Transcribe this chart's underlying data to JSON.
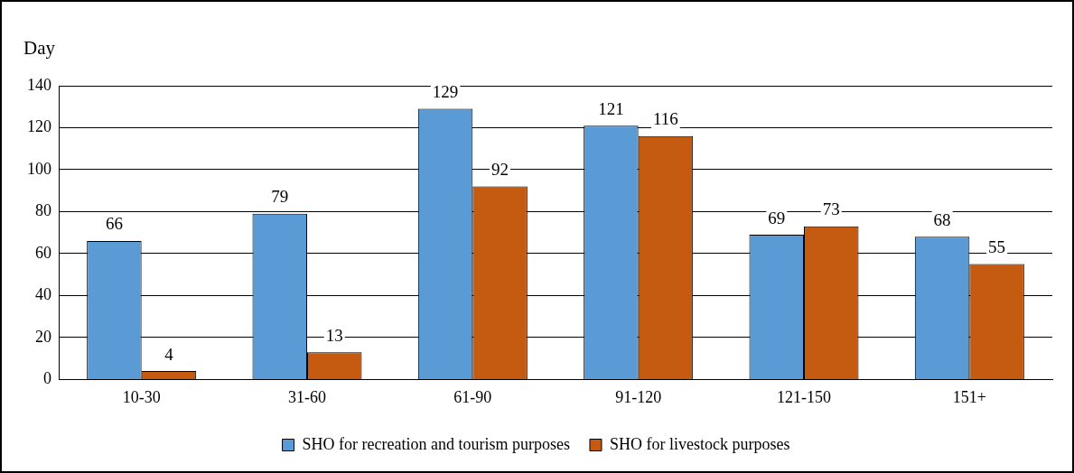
{
  "chart_data": {
    "type": "bar",
    "ylabel": "Day",
    "categories": [
      "10-30",
      "31-60",
      "61-90",
      "91-120",
      "121-150",
      "151+"
    ],
    "series": [
      {
        "name": "SHO for recreation and tourism purposes",
        "color": "#5b9bd5",
        "values": [
          66,
          79,
          129,
          121,
          69,
          68
        ]
      },
      {
        "name": "SHO for livestock purposes",
        "color": "#c55a11",
        "values": [
          4,
          13,
          92,
          116,
          73,
          55
        ]
      }
    ],
    "ylim": [
      0,
      140
    ],
    "yticks": [
      0,
      20,
      40,
      60,
      80,
      100,
      120,
      140
    ],
    "grid": "y",
    "legend": "bottom",
    "data_labels": true
  }
}
